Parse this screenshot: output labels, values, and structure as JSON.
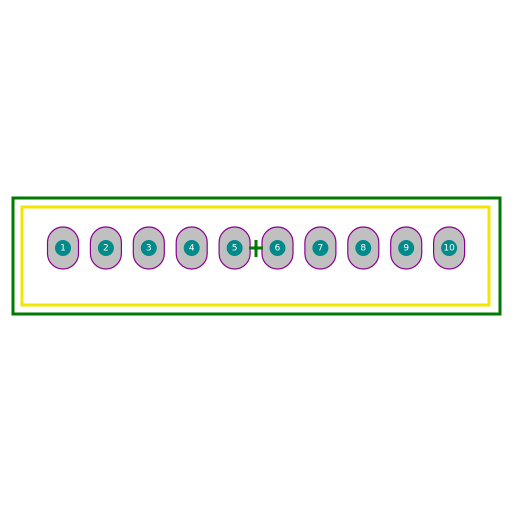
{
  "colors": {
    "background": "#ffffff",
    "courtyard": "#007a00",
    "silkscreen": "#f2e600",
    "pad_fill": "#c0c0c0",
    "pad_outline": "#8a0090",
    "drill": "#008a8a",
    "label": "#ffffff",
    "origin_marker": "#007a00"
  },
  "footprint": {
    "pins": [
      {
        "label": "1"
      },
      {
        "label": "2"
      },
      {
        "label": "3"
      },
      {
        "label": "4"
      },
      {
        "label": "5"
      },
      {
        "label": "6"
      },
      {
        "label": "7"
      },
      {
        "label": "8"
      },
      {
        "label": "9"
      },
      {
        "label": "10"
      }
    ]
  }
}
